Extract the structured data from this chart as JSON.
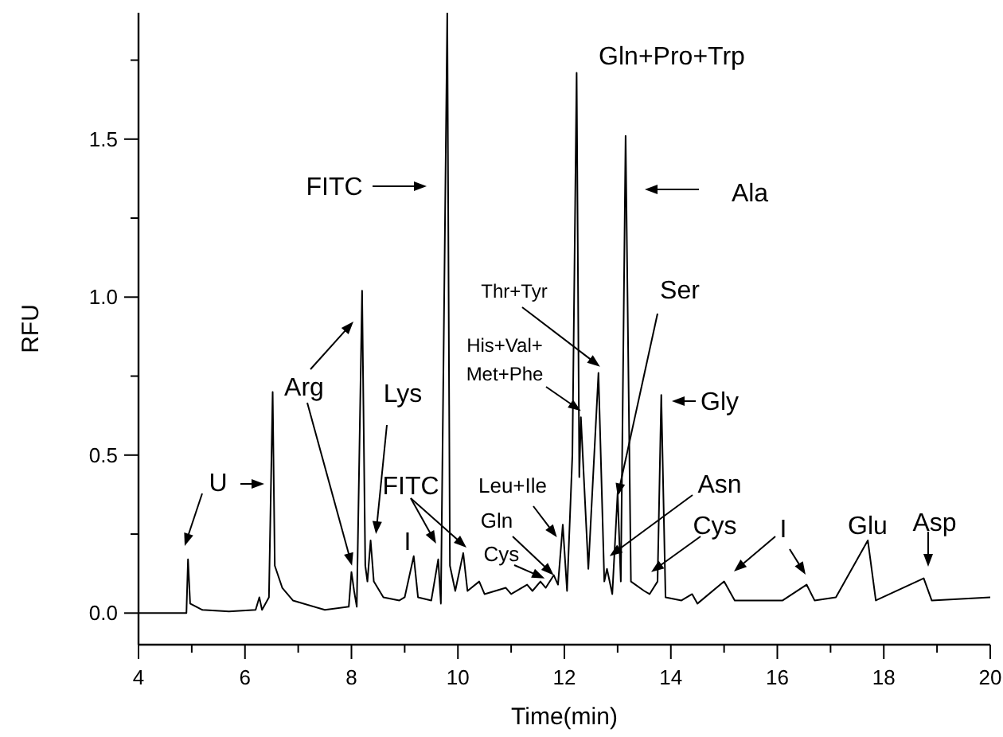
{
  "chart_data": {
    "type": "line",
    "xlabel": "Time(min)",
    "ylabel": "RFU",
    "xlim": [
      4,
      20
    ],
    "xticks": [
      4,
      {
        "value": 5,
        "label": null
      },
      6,
      {
        "value": 7,
        "label": null
      },
      8,
      {
        "value": 9,
        "label": null
      },
      10,
      {
        "value": 11,
        "label": null
      },
      12,
      {
        "value": 13,
        "label": null
      },
      14,
      {
        "value": 15,
        "label": null
      },
      16,
      {
        "value": 17,
        "label": null
      },
      18,
      {
        "value": 19,
        "label": null
      },
      20
    ],
    "ylim": [
      -0.1,
      1.9
    ],
    "yticks": [
      {
        "value": 0,
        "label": "0.0"
      },
      {
        "value": 0.25,
        "label": null
      },
      {
        "value": 0.5,
        "label": "0.5"
      },
      {
        "value": 0.75,
        "label": null
      },
      {
        "value": 1,
        "label": "1.0"
      },
      {
        "value": 1.25,
        "label": null
      },
      {
        "value": 1.5,
        "label": "1.5"
      },
      {
        "value": 1.75,
        "label": null
      }
    ],
    "grid": false,
    "marker": "none",
    "line_style": "solid",
    "series": [
      {
        "color": "#000000",
        "x": [
          4,
          4.9,
          4.93,
          4.97,
          5.2,
          5.7,
          6.2,
          6.27,
          6.32,
          6.45,
          6.52,
          6.56,
          6.7,
          6.9,
          7.5,
          7.95,
          8.0,
          8.05,
          8.1,
          8.2,
          8.26,
          8.3,
          8.36,
          8.42,
          8.6,
          8.9,
          9.0,
          9.17,
          9.25,
          9.5,
          9.63,
          9.68,
          9.8,
          9.85,
          9.95,
          10.1,
          10.18,
          10.4,
          10.5,
          10.9,
          11.0,
          11.3,
          11.4,
          11.55,
          11.65,
          11.8,
          11.88,
          11.97,
          12.05,
          12.15,
          12.23,
          12.28,
          12.31,
          12.45,
          12.64,
          12.75,
          12.8,
          12.9,
          13.0,
          13.06,
          13.15,
          13.25,
          13.5,
          13.6,
          13.75,
          13.82,
          13.9,
          14.2,
          14.4,
          14.5,
          15.0,
          15.2,
          16.1,
          16.55,
          16.7,
          17.1,
          17.7,
          17.85,
          18.75,
          18.9,
          20
        ],
        "values": [
          0,
          0,
          0.17,
          0.03,
          0.01,
          0.005,
          0.01,
          0.05,
          0.01,
          0.05,
          0.7,
          0.15,
          0.08,
          0.04,
          0.01,
          0.02,
          0.13,
          0.07,
          0.02,
          1.02,
          0.15,
          0.1,
          0.23,
          0.1,
          0.05,
          0.04,
          0.05,
          0.18,
          0.05,
          0.04,
          0.17,
          0.03,
          1.9,
          0.15,
          0.07,
          0.19,
          0.07,
          0.1,
          0.06,
          0.08,
          0.06,
          0.09,
          0.07,
          0.1,
          0.08,
          0.12,
          0.09,
          0.28,
          0.07,
          0.5,
          1.71,
          0.43,
          0.62,
          0.14,
          0.76,
          0.1,
          0.14,
          0.06,
          0.38,
          0.1,
          1.51,
          0.1,
          0.07,
          0.06,
          0.1,
          0.69,
          0.05,
          0.04,
          0.06,
          0.03,
          0.1,
          0.04,
          0.04,
          0.09,
          0.04,
          0.05,
          0.23,
          0.04,
          0.11,
          0.04,
          0.05
        ]
      }
    ],
    "annotations": [
      "U",
      {
        "text": "Arg",
        "x": 8.01,
        "y": 0.15
      },
      {
        "text": "Lys",
        "x": 8.46,
        "y": 0.25
      },
      "FITC",
      {
        "text": "FITC",
        "x": 9.59,
        "y": 0.22
      },
      "I",
      {
        "text": "Leu+Ile",
        "x": 11.86,
        "y": 0.24
      },
      {
        "text": "Gln",
        "x": 11.8,
        "y": 0.12
      },
      {
        "text": "Cys",
        "x": 11.63,
        "y": 0.11
      },
      {
        "text": "Thr+Tyr",
        "x": 12.67,
        "y": 0.78
      },
      "His+Val+",
      {
        "text": "Met+Phe",
        "x": 12.31,
        "y": 0.64
      },
      "Gln+Pro+Trp",
      "Ala",
      {
        "text": "Ser",
        "x": 13.0,
        "y": 0.37
      },
      "Gly",
      {
        "text": "Asn",
        "x": 12.85,
        "y": 0.18
      },
      {
        "text": "Cys",
        "x": 13.63,
        "y": 0.13
      },
      "I",
      "Glu",
      "Asp"
    ]
  }
}
